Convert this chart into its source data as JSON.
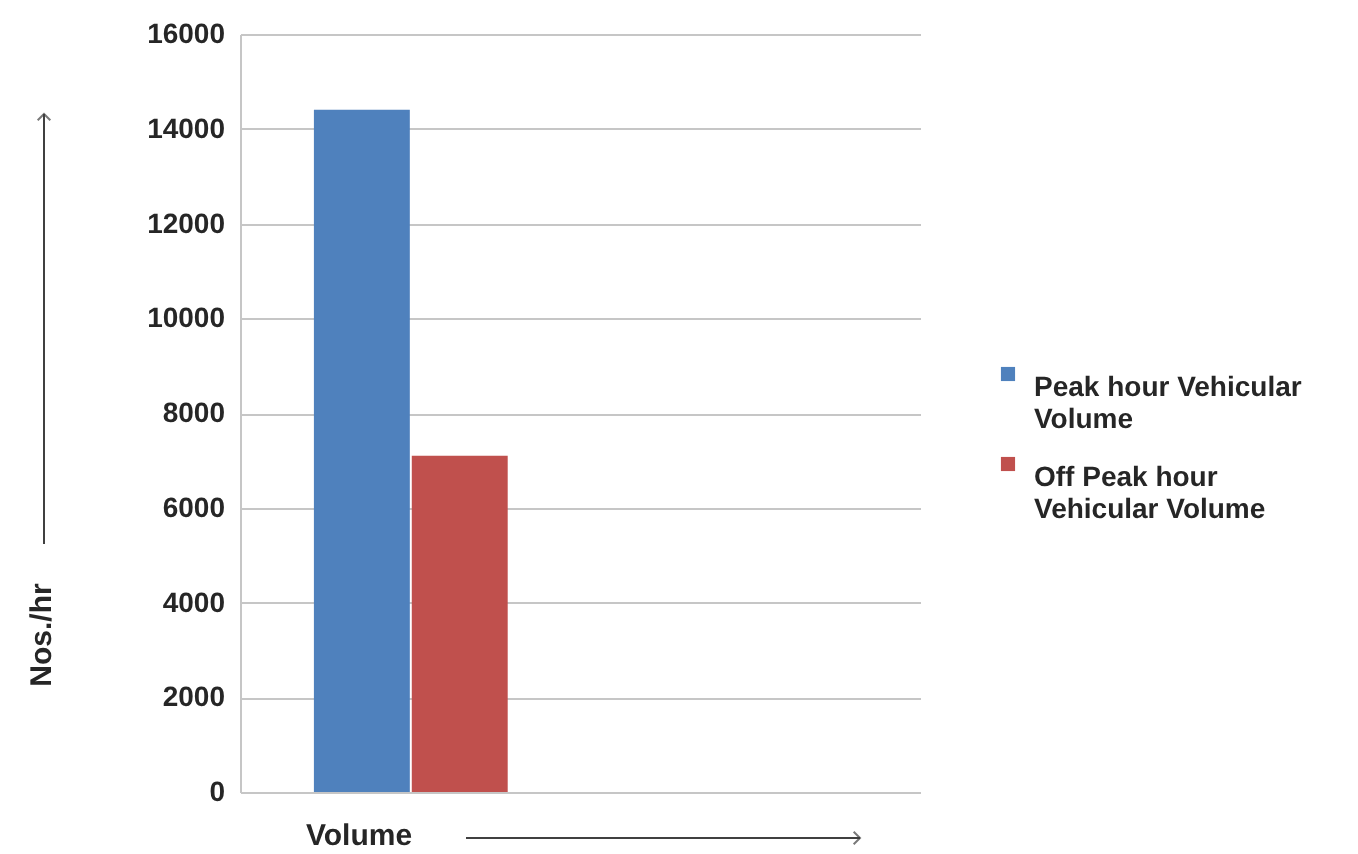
{
  "chart_data": {
    "type": "bar",
    "categories": [
      null
    ],
    "xlabel": "Volume",
    "ylabel": "Nos./hr",
    "series": [
      {
        "name": "Peak hour  Vehicular Volume",
        "color": "#4f81bd",
        "values": [
          14400
        ]
      },
      {
        "name": "Off Peak hour Vehicular Volume",
        "color": "#c0504d",
        "values": [
          7100
        ]
      }
    ],
    "ylim": [
      0,
      16000
    ],
    "yticks": [
      0,
      2000,
      4000,
      6000,
      8000,
      10000,
      12000,
      14000,
      16000
    ],
    "grid": "y",
    "legend": "right",
    "tick_labels": "y"
  }
}
